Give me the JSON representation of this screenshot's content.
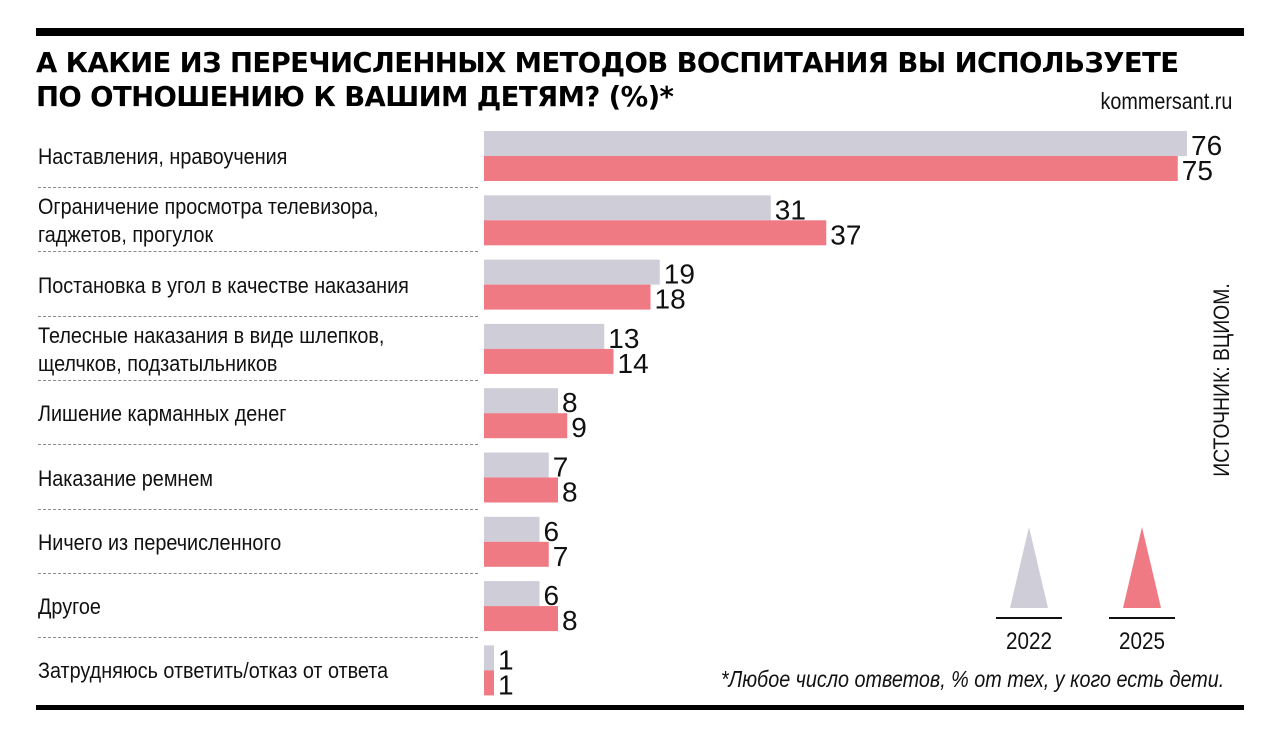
{
  "header": {
    "title_line1": "А КАКИЕ ИЗ ПЕРЕЧИСЛЕННЫХ МЕТОДОВ ВОСПИТАНИЯ ВЫ ИСПОЛЬЗУЕТЕ",
    "title_line2": "ПО ОТНОШЕНИЮ К ВАШИМ ДЕТЯМ? (%)*",
    "site": "kommersant.ru"
  },
  "source": "ИСТОЧНИК: ВЦИОМ.",
  "footnote": "*Любое число ответов, % от тех, у кого есть дети.",
  "colors": {
    "series_2022": "#cfcdd8",
    "series_2025": "#ef7a84"
  },
  "chart_data": {
    "type": "bar",
    "orientation": "horizontal",
    "title": "А КАКИЕ ИЗ ПЕРЕЧИСЛЕННЫХ МЕТОДОВ ВОСПИТАНИЯ ВЫ ИСПОЛЬЗУЕТЕ ПО ОТНОШЕНИЮ К ВАШИМ ДЕТЯМ? (%)*",
    "xlabel": "",
    "ylabel": "",
    "xlim": [
      0,
      76
    ],
    "grid": false,
    "legend": "bottom-right",
    "categories": [
      [
        "Наставления, нравоучения"
      ],
      [
        "Ограничение просмотра телевизора,",
        "гаджетов, прогулок"
      ],
      [
        "Постановка в угол в качестве наказания"
      ],
      [
        "Телесные наказания в виде шлепков,",
        "щелчков, подзатыльников"
      ],
      [
        "Лишение карманных денег"
      ],
      [
        "Наказание ремнем"
      ],
      [
        "Ничего из перечисленного"
      ],
      [
        "Другое"
      ],
      [
        "Затрудняюсь ответить/отказ от ответа"
      ]
    ],
    "series": [
      {
        "name": "2022",
        "values": [
          76,
          31,
          19,
          13,
          8,
          7,
          6,
          6,
          1
        ]
      },
      {
        "name": "2025",
        "values": [
          75,
          37,
          18,
          14,
          9,
          8,
          7,
          8,
          1
        ]
      }
    ]
  }
}
